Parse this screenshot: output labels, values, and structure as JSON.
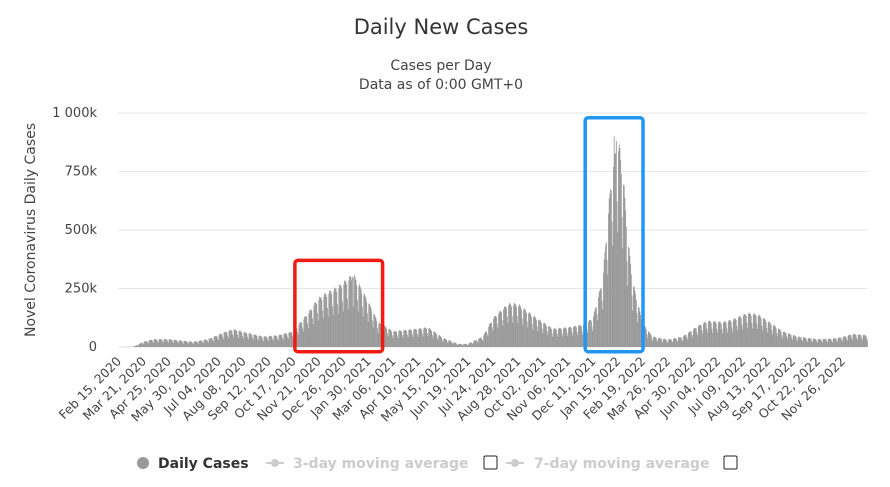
{
  "chart_data": {
    "type": "bar",
    "title": "Daily New Cases",
    "subtitle_lines": [
      "Cases per Day",
      "Data as of 0:00 GMT+0"
    ],
    "ylabel": "Novel Coronavirus Daily Cases",
    "ylim": [
      0,
      1000000
    ],
    "y_ticks": [
      {
        "value": 0,
        "label": "0"
      },
      {
        "value": 250000,
        "label": "250k"
      },
      {
        "value": 500000,
        "label": "500k"
      },
      {
        "value": 750000,
        "label": "750k"
      },
      {
        "value": 1000000,
        "label": "1 000k"
      }
    ],
    "x_range": [
      "2020-02-15",
      "2022-12-31"
    ],
    "x_ticks": [
      "Feb 15, 2020",
      "Mar 21, 2020",
      "Apr 25, 2020",
      "May 30, 2020",
      "Jul 04, 2020",
      "Aug 08, 2020",
      "Sep 12, 2020",
      "Oct 17, 2020",
      "Nov 21, 2020",
      "Dec 26, 2020",
      "Jan 30, 2021",
      "Mar 06, 2021",
      "Apr 10, 2021",
      "May 15, 2021",
      "Jun 19, 2021",
      "Jul 24, 2021",
      "Aug 28, 2021",
      "Oct 02, 2021",
      "Nov 06, 2021",
      "Dec 11, 2021",
      "Jan 15, 2022",
      "Feb 19, 2022",
      "Mar 26, 2022",
      "Apr 30, 2022",
      "Jun 04, 2022",
      "Jul 09, 2022",
      "Aug 13, 2022",
      "Sep 17, 2022",
      "Oct 22, 2022",
      "Nov 26, 2022"
    ],
    "grid": true,
    "series": [
      {
        "name": "Daily Cases",
        "color": "#999999",
        "weekly_anchors": [
          [
            "2020-02-15",
            0
          ],
          [
            "2020-03-07",
            1000
          ],
          [
            "2020-03-21",
            20000
          ],
          [
            "2020-04-04",
            30000
          ],
          [
            "2020-04-25",
            30000
          ],
          [
            "2020-05-30",
            20000
          ],
          [
            "2020-06-20",
            30000
          ],
          [
            "2020-07-11",
            55000
          ],
          [
            "2020-07-25",
            68000
          ],
          [
            "2020-08-08",
            58000
          ],
          [
            "2020-09-05",
            40000
          ],
          [
            "2020-09-26",
            45000
          ],
          [
            "2020-10-17",
            60000
          ],
          [
            "2020-11-07",
            130000
          ],
          [
            "2020-11-21",
            185000
          ],
          [
            "2020-12-05",
            210000
          ],
          [
            "2020-12-19",
            230000
          ],
          [
            "2021-01-02",
            260000
          ],
          [
            "2021-01-09",
            280000
          ],
          [
            "2021-01-30",
            175000
          ],
          [
            "2021-02-13",
            95000
          ],
          [
            "2021-03-06",
            60000
          ],
          [
            "2021-04-10",
            70000
          ],
          [
            "2021-04-24",
            75000
          ],
          [
            "2021-05-15",
            35000
          ],
          [
            "2021-06-05",
            12000
          ],
          [
            "2021-06-19",
            12000
          ],
          [
            "2021-07-10",
            40000
          ],
          [
            "2021-07-24",
            110000
          ],
          [
            "2021-08-14",
            165000
          ],
          [
            "2021-08-28",
            165000
          ],
          [
            "2021-09-18",
            120000
          ],
          [
            "2021-10-16",
            70000
          ],
          [
            "2021-11-06",
            75000
          ],
          [
            "2021-11-27",
            85000
          ],
          [
            "2021-12-11",
            110000
          ],
          [
            "2021-12-25",
            260000
          ],
          [
            "2022-01-01",
            500000
          ],
          [
            "2022-01-08",
            700000
          ],
          [
            "2022-01-15",
            790000
          ],
          [
            "2022-01-22",
            680000
          ],
          [
            "2022-01-29",
            420000
          ],
          [
            "2022-02-05",
            250000
          ],
          [
            "2022-02-19",
            90000
          ],
          [
            "2022-03-05",
            40000
          ],
          [
            "2022-03-26",
            28000
          ],
          [
            "2022-04-16",
            40000
          ],
          [
            "2022-05-07",
            80000
          ],
          [
            "2022-05-21",
            100000
          ],
          [
            "2022-06-11",
            95000
          ],
          [
            "2022-06-25",
            105000
          ],
          [
            "2022-07-16",
            130000
          ],
          [
            "2022-07-30",
            125000
          ],
          [
            "2022-08-13",
            100000
          ],
          [
            "2022-09-03",
            60000
          ],
          [
            "2022-09-24",
            40000
          ],
          [
            "2022-10-22",
            30000
          ],
          [
            "2022-11-12",
            32000
          ],
          [
            "2022-11-26",
            38000
          ],
          [
            "2022-12-10",
            50000
          ],
          [
            "2022-12-31",
            45000
          ]
        ],
        "peaks": [
          [
            "2021-01-08",
            300000
          ],
          [
            "2022-01-10",
            900000
          ],
          [
            "2022-01-13",
            880000
          ],
          [
            "2022-01-18",
            850000
          ]
        ]
      },
      {
        "name": "3-day moving average",
        "color": "#cccccc",
        "visible": false
      },
      {
        "name": "7-day moving average",
        "color": "#cccccc",
        "visible": false
      }
    ],
    "annotations": [
      {
        "type": "highlight-box",
        "color": "#ee1c12",
        "x_from": "2020-10-20",
        "x_to": "2021-02-20",
        "y_from": -20000,
        "y_to": 370000
      },
      {
        "type": "highlight-box",
        "color": "#2196f3",
        "x_from": "2021-12-01",
        "x_to": "2022-02-20",
        "y_from": -20000,
        "y_to": 980000
      }
    ]
  },
  "legend": [
    {
      "label": "Daily Cases",
      "color": "#999999",
      "active": true,
      "checkbox": false
    },
    {
      "label": "3-day moving average",
      "color": "#cccccc",
      "active": false,
      "checkbox": true
    },
    {
      "label": "7-day moving average",
      "color": "#cccccc",
      "active": false,
      "checkbox": true
    }
  ]
}
